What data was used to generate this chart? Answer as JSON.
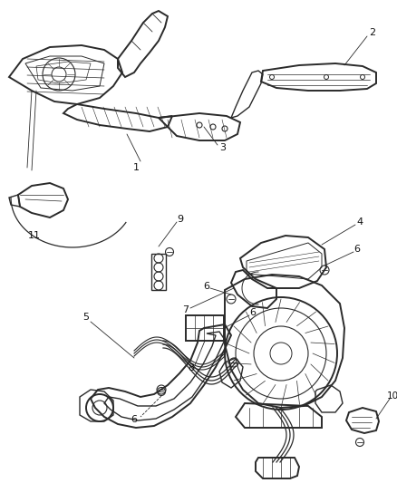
{
  "bg_color": "#ffffff",
  "line_color": "#2a2a2a",
  "label_color": "#111111",
  "fig_width": 4.38,
  "fig_height": 5.33,
  "dpi": 100
}
